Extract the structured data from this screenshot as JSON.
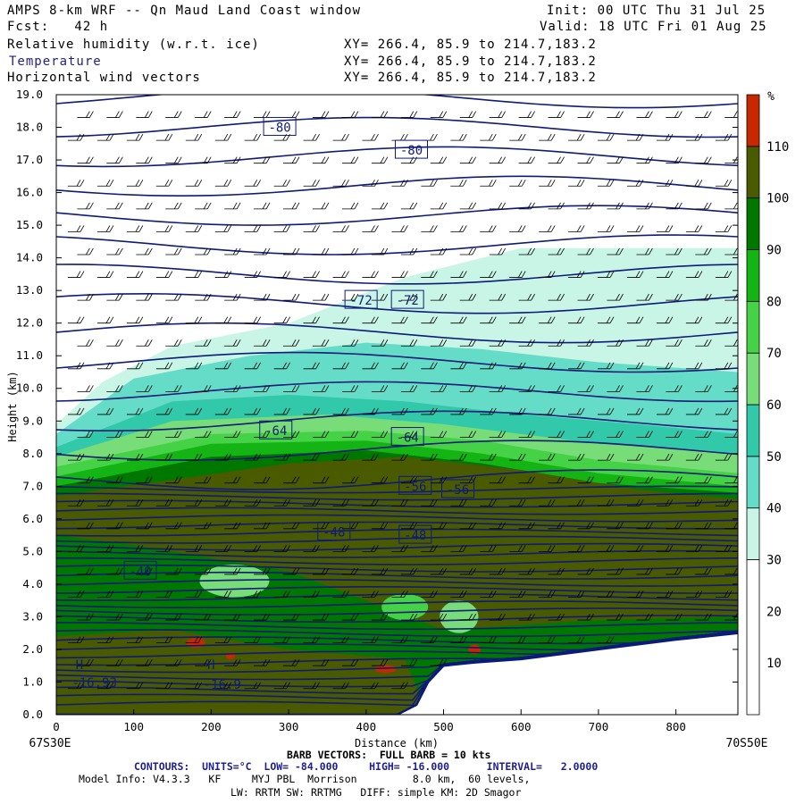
{
  "header": {
    "title": "AMPS 8-km WRF -- Qn Maud Land Coast window",
    "init": "Init: 00 UTC Thu 31 Jul 25",
    "fcst": "Fcst:   42 h",
    "valid": "Valid: 18 UTC Fri 01 Aug 25",
    "fields": [
      {
        "name": "Relative humidity (w.r.t. ice)",
        "xy": "XY= 266.4, 85.9 to 214.7,183.2"
      },
      {
        "name": "Temperature",
        "xy": "XY= 266.4, 85.9 to 214.7,183.2"
      },
      {
        "name": "Horizontal wind vectors",
        "xy": "XY= 266.4, 85.9 to 214.7,183.2"
      }
    ]
  },
  "footer": {
    "barb": "BARB VECTORS:  FULL BARB = 10 kts",
    "contours": "CONTOURS:  UNITS=°C  LOW= -84.000     HIGH= -16.000      INTERVAL=   2.0000",
    "model1": "Model Info: V4.3.3   KF     MYJ PBL  Morrison         8.0 km,  60 levels,",
    "model2": "LW: RRTM SW: RRTMG   DIFF: simple KM: 2D Smagor"
  },
  "chart_data": {
    "type": "heatmap",
    "xlabel": "Distance (km)",
    "ylabel": "Height (km)",
    "xlim": [
      0,
      880
    ],
    "ylim": [
      0,
      19
    ],
    "x_ticks": [
      0,
      100,
      200,
      300,
      400,
      500,
      600,
      700,
      800
    ],
    "y_ticks": [
      "0.0",
      "1.0",
      "2.0",
      "3.0",
      "4.0",
      "5.0",
      "6.0",
      "7.0",
      "8.0",
      "9.0",
      "10.0",
      "11.0",
      "12.0",
      "13.0",
      "14.0",
      "15.0",
      "16.0",
      "17.0",
      "18.0",
      "19.0"
    ],
    "left_endpoint": "67S30E",
    "right_endpoint": "70S50E",
    "colorbar": {
      "unit": "%",
      "labels": [
        10,
        20,
        30,
        40,
        50,
        60,
        70,
        80,
        90,
        100,
        110
      ],
      "bins": [
        {
          "from": 0,
          "to": 30,
          "color": "#ffffff"
        },
        {
          "from": 30,
          "to": 40,
          "color": "#c8f5e6"
        },
        {
          "from": 40,
          "to": 50,
          "color": "#64dcc8"
        },
        {
          "from": 50,
          "to": 60,
          "color": "#32c8aa"
        },
        {
          "from": 60,
          "to": 70,
          "color": "#78dc78"
        },
        {
          "from": 70,
          "to": 80,
          "color": "#46d246"
        },
        {
          "from": 80,
          "to": 90,
          "color": "#14b414"
        },
        {
          "from": 90,
          "to": 100,
          "color": "#007800"
        },
        {
          "from": 100,
          "to": 110,
          "color": "#4a5a00"
        },
        {
          "from": 110,
          "to": 120,
          "color": "#c82800"
        }
      ]
    },
    "rh_layers": [
      {
        "color": "#c8f5e6",
        "points": [
          [
            0,
            8.9
          ],
          [
            60,
            10.2
          ],
          [
            150,
            11.3
          ],
          [
            300,
            12.0
          ],
          [
            450,
            13.4
          ],
          [
            600,
            14.3
          ],
          [
            880,
            14.3
          ],
          [
            880,
            0
          ],
          [
            0,
            0
          ]
        ]
      },
      {
        "color": "#64dcc8",
        "points": [
          [
            0,
            8.6
          ],
          [
            100,
            10.3
          ],
          [
            250,
            11.0
          ],
          [
            400,
            11.4
          ],
          [
            550,
            11.2
          ],
          [
            700,
            10.8
          ],
          [
            880,
            10.5
          ],
          [
            880,
            0
          ],
          [
            0,
            0
          ]
        ]
      },
      {
        "color": "#32c8aa",
        "points": [
          [
            0,
            8.2
          ],
          [
            150,
            9.6
          ],
          [
            300,
            9.8
          ],
          [
            450,
            9.6
          ],
          [
            600,
            9.2
          ],
          [
            750,
            8.9
          ],
          [
            880,
            8.6
          ],
          [
            880,
            0
          ],
          [
            0,
            0
          ]
        ]
      },
      {
        "color": "#78dc78",
        "points": [
          [
            0,
            7.9
          ],
          [
            150,
            9.0
          ],
          [
            350,
            9.2
          ],
          [
            500,
            8.9
          ],
          [
            700,
            8.3
          ],
          [
            880,
            8.0
          ],
          [
            880,
            0
          ],
          [
            0,
            0
          ]
        ]
      },
      {
        "color": "#46d246",
        "points": [
          [
            0,
            7.6
          ],
          [
            200,
            8.6
          ],
          [
            400,
            8.7
          ],
          [
            550,
            8.4
          ],
          [
            700,
            7.8
          ],
          [
            880,
            7.4
          ],
          [
            880,
            0
          ],
          [
            0,
            0
          ]
        ]
      },
      {
        "color": "#14b414",
        "points": [
          [
            0,
            7.3
          ],
          [
            200,
            8.3
          ],
          [
            400,
            8.4
          ],
          [
            550,
            8.0
          ],
          [
            700,
            7.4
          ],
          [
            880,
            7.0
          ],
          [
            880,
            0
          ],
          [
            0,
            0
          ]
        ]
      },
      {
        "color": "#007800",
        "points": [
          [
            0,
            7.0
          ],
          [
            200,
            7.9
          ],
          [
            400,
            8.1
          ],
          [
            550,
            7.7
          ],
          [
            700,
            7.1
          ],
          [
            880,
            6.8
          ],
          [
            880,
            0
          ],
          [
            0,
            0
          ]
        ]
      },
      {
        "color": "#4a5a00",
        "points": [
          [
            0,
            6.7
          ],
          [
            150,
            7.2
          ],
          [
            300,
            7.7
          ],
          [
            450,
            7.9
          ],
          [
            600,
            7.5
          ],
          [
            750,
            6.9
          ],
          [
            880,
            6.6
          ],
          [
            880,
            3.0
          ],
          [
            700,
            2.9
          ],
          [
            500,
            2.6
          ],
          [
            300,
            4.4
          ],
          [
            100,
            5.2
          ],
          [
            0,
            5.5
          ]
        ]
      },
      {
        "color": "#4a5a00",
        "points": [
          [
            0,
            2.4
          ],
          [
            150,
            2.6
          ],
          [
            300,
            2.0
          ],
          [
            450,
            1.7
          ],
          [
            480,
            0
          ],
          [
            0,
            0
          ]
        ]
      }
    ],
    "rh_pockets": [
      {
        "color": "#78dc78",
        "cx": 230,
        "cy": 4.1,
        "rx": 45,
        "ry": 0.5
      },
      {
        "color": "#78dc78",
        "cx": 520,
        "cy": 3.0,
        "rx": 25,
        "ry": 0.5
      },
      {
        "color": "#46d246",
        "cx": 450,
        "cy": 3.3,
        "rx": 30,
        "ry": 0.4
      },
      {
        "color": "#c82800",
        "cx": 180,
        "cy": 2.2,
        "rx": 12,
        "ry": 0.15
      },
      {
        "color": "#c82800",
        "cx": 425,
        "cy": 1.4,
        "rx": 14,
        "ry": 0.12
      },
      {
        "color": "#c82800",
        "cx": 540,
        "cy": 2.0,
        "rx": 8,
        "ry": 0.15
      },
      {
        "color": "#c82800",
        "cx": 225,
        "cy": 1.8,
        "rx": 6,
        "ry": 0.1
      }
    ],
    "terrain": [
      [
        0,
        0
      ],
      [
        440,
        0
      ],
      [
        465,
        0.3
      ],
      [
        480,
        1.0
      ],
      [
        500,
        1.5
      ],
      [
        540,
        1.6
      ],
      [
        600,
        1.7
      ],
      [
        700,
        2.0
      ],
      [
        800,
        2.3
      ],
      [
        880,
        2.5
      ]
    ],
    "contour_labels": [
      {
        "text": "-80",
        "x": 270,
        "y": 18.0
      },
      {
        "text": "-80",
        "x": 440,
        "y": 17.3
      },
      {
        "text": "-72",
        "x": 375,
        "y": 12.7
      },
      {
        "text": "-72",
        "x": 435,
        "y": 12.7
      },
      {
        "text": "-64",
        "x": 265,
        "y": 8.7
      },
      {
        "text": "-64",
        "x": 435,
        "y": 8.5
      },
      {
        "text": "-56",
        "x": 445,
        "y": 7.0
      },
      {
        "text": "-56",
        "x": 500,
        "y": 6.9
      },
      {
        "text": "-48",
        "x": 340,
        "y": 5.6
      },
      {
        "text": "-48",
        "x": 445,
        "y": 5.5
      },
      {
        "text": "-40",
        "x": 90,
        "y": 4.4
      }
    ],
    "annotations": [
      {
        "text": "H",
        "x": 25,
        "y": 1.4
      },
      {
        "text": "-16.93",
        "x": 20,
        "y": 0.85
      },
      {
        "text": "H",
        "x": 195,
        "y": 1.4
      },
      {
        "text": "-16.9",
        "x": 190,
        "y": 0.8
      }
    ]
  }
}
